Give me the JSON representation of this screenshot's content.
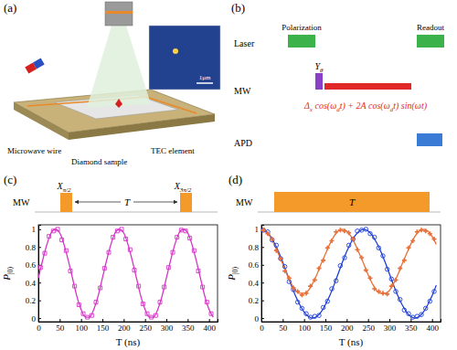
{
  "diagram": {
    "panel_a": {
      "label": "(a)",
      "microwave_wire": "Microwave wire",
      "diamond_sample": "Diamond sample",
      "tec_element": "TEC element",
      "scale_bar": "1μm"
    },
    "panel_b": {
      "label": "(b)",
      "rows": [
        "Laser",
        "MW",
        "APD"
      ],
      "polarization": "Polarization",
      "readout": "Readout",
      "pulse": {
        "text": "Y",
        "sub": "θ"
      },
      "drive": [
        {
          "text": "Δ"
        },
        {
          "sub": "x"
        },
        {
          "text": " cos(ω"
        },
        {
          "sub": "d"
        },
        {
          "text": "t) + 2A cos(ω"
        },
        {
          "sub": "d"
        },
        {
          "text": "t) sin(ωt)"
        }
      ]
    },
    "panel_c": {
      "row": "MW",
      "pulses": [
        {
          "text": "X",
          "sub": "π/2"
        },
        {
          "text": "X",
          "sub": "3π/2"
        }
      ],
      "interval": "T"
    },
    "panel_d": {
      "row": "MW",
      "duration": "T"
    }
  },
  "chart_data": [
    {
      "type": "line",
      "title": "(c)",
      "x_label": "T (ns)",
      "y_label": "P|0⟩",
      "xlim": [
        0,
        420
      ],
      "ylim": [
        -0.04,
        1.05
      ],
      "xticks": [
        0,
        50,
        100,
        150,
        200,
        250,
        300,
        350,
        400
      ],
      "yticks": [
        0,
        0.2,
        0.4,
        0.6,
        0.8,
        1
      ],
      "series": [
        {
          "type": "line",
          "color": "#d633c7",
          "x": [
            0,
            10,
            20,
            30,
            40,
            50,
            60,
            70,
            80,
            90,
            100,
            110,
            120,
            130,
            140,
            150,
            160,
            170,
            180,
            190,
            200,
            210,
            220,
            230,
            240,
            250,
            260,
            270,
            280,
            290,
            300,
            310,
            320,
            330,
            340,
            350,
            360,
            370,
            380,
            390,
            400,
            410
          ],
          "values": [
            0.45,
            0.65,
            0.83,
            0.96,
            1,
            0.96,
            0.83,
            0.65,
            0.45,
            0.25,
            0.1,
            0.01,
            0.01,
            0.1,
            0.25,
            0.45,
            0.65,
            0.83,
            0.96,
            1,
            0.96,
            0.83,
            0.65,
            0.45,
            0.25,
            0.1,
            0.01,
            0.01,
            0.1,
            0.25,
            0.45,
            0.65,
            0.83,
            0.96,
            1,
            0.96,
            0.83,
            0.65,
            0.45,
            0.25,
            0.1,
            0.01
          ]
        },
        {
          "type": "scatter",
          "marker": "square",
          "color": "#d633c7",
          "x": [
            5,
            15,
            25,
            35,
            45,
            55,
            65,
            75,
            85,
            95,
            105,
            115,
            125,
            135,
            145,
            155,
            165,
            175,
            185,
            195,
            205,
            215,
            225,
            235,
            245,
            255,
            265,
            275,
            285,
            295,
            305,
            315,
            325,
            335,
            345,
            355,
            365,
            375,
            385,
            395,
            405
          ],
          "values": [
            0.57,
            0.73,
            0.92,
            0.98,
            1,
            0.88,
            0.76,
            0.53,
            0.36,
            0.15,
            0.05,
            0.01,
            0.03,
            0.18,
            0.34,
            0.56,
            0.74,
            0.91,
            0.98,
            1,
            0.89,
            0.77,
            0.54,
            0.36,
            0.16,
            0.05,
            0.01,
            0.03,
            0.18,
            0.35,
            0.57,
            0.74,
            0.91,
            0.99,
            0.98,
            0.9,
            0.76,
            0.53,
            0.35,
            0.18,
            0.05
          ]
        }
      ]
    },
    {
      "type": "line",
      "title": "(d)",
      "x_label": "T (ns)",
      "y_label": "P|0⟩",
      "xlim": [
        0,
        420
      ],
      "ylim": [
        -0.04,
        1.05
      ],
      "xticks": [
        0,
        50,
        100,
        150,
        200,
        250,
        300,
        350,
        400
      ],
      "yticks": [
        0,
        0.2,
        0.4,
        0.6,
        0.8,
        1
      ],
      "series": [
        {
          "type": "line",
          "color": "#1f3fd6",
          "x": [
            0,
            10,
            20,
            30,
            40,
            50,
            60,
            70,
            80,
            90,
            100,
            110,
            120,
            130,
            140,
            150,
            160,
            170,
            180,
            190,
            200,
            210,
            220,
            230,
            240,
            250,
            260,
            270,
            280,
            290,
            300,
            310,
            320,
            330,
            340,
            350,
            360,
            370,
            380,
            390,
            400,
            410
          ],
          "values": [
            1,
            0.98,
            0.93,
            0.85,
            0.75,
            0.63,
            0.5,
            0.37,
            0.25,
            0.15,
            0.07,
            0.02,
            0,
            0.02,
            0.07,
            0.15,
            0.25,
            0.37,
            0.5,
            0.63,
            0.75,
            0.85,
            0.93,
            0.98,
            1,
            0.98,
            0.93,
            0.85,
            0.75,
            0.63,
            0.5,
            0.37,
            0.25,
            0.15,
            0.07,
            0.02,
            0,
            0.02,
            0.07,
            0.15,
            0.25,
            0.37
          ]
        },
        {
          "type": "line",
          "color": "#e8703a",
          "x": [
            0,
            10,
            20,
            30,
            40,
            50,
            60,
            70,
            80,
            90,
            100,
            110,
            120,
            130,
            140,
            150,
            160,
            170,
            180,
            190,
            200,
            210,
            220,
            230,
            240,
            250,
            260,
            270,
            280,
            290,
            300,
            310,
            320,
            330,
            340,
            350,
            360,
            370,
            380,
            390,
            400,
            410
          ],
          "values": [
            1,
            0.98,
            0.92,
            0.83,
            0.72,
            0.61,
            0.49,
            0.39,
            0.31,
            0.28,
            0.28,
            0.31,
            0.39,
            0.49,
            0.61,
            0.72,
            0.83,
            0.92,
            0.98,
            1,
            0.98,
            0.92,
            0.83,
            0.72,
            0.61,
            0.49,
            0.39,
            0.31,
            0.28,
            0.28,
            0.31,
            0.39,
            0.49,
            0.61,
            0.72,
            0.83,
            0.92,
            0.98,
            1,
            0.98,
            0.92,
            0.83
          ]
        },
        {
          "type": "scatter",
          "marker": "circle",
          "color": "#1f3fd6",
          "x": [
            5,
            15,
            25,
            35,
            45,
            55,
            65,
            75,
            85,
            95,
            105,
            115,
            125,
            135,
            145,
            155,
            165,
            175,
            185,
            195,
            205,
            215,
            225,
            235,
            245,
            255,
            265,
            275,
            285,
            295,
            305,
            315,
            325,
            335,
            345,
            355,
            365,
            375,
            385,
            395,
            405
          ],
          "values": [
            0.99,
            0.97,
            0.88,
            0.82,
            0.67,
            0.58,
            0.41,
            0.32,
            0.18,
            0.11,
            0.05,
            0.01,
            0.02,
            0.03,
            0.12,
            0.19,
            0.33,
            0.42,
            0.59,
            0.68,
            0.82,
            0.89,
            0.98,
            0.99,
            1,
            0.95,
            0.91,
            0.79,
            0.7,
            0.55,
            0.44,
            0.3,
            0.21,
            0.09,
            0.05,
            0.01,
            0.02,
            0.04,
            0.11,
            0.19,
            0.3
          ]
        },
        {
          "type": "scatter",
          "marker": "cross",
          "color": "#e8703a",
          "x": [
            5,
            15,
            25,
            35,
            45,
            55,
            65,
            75,
            85,
            95,
            105,
            115,
            125,
            135,
            145,
            155,
            165,
            175,
            185,
            195,
            205,
            215,
            225,
            235,
            245,
            255,
            265,
            275,
            285,
            295,
            305,
            315,
            325,
            335,
            345,
            355,
            365,
            375,
            385,
            395,
            405
          ],
          "values": [
            0.99,
            0.95,
            0.89,
            0.76,
            0.67,
            0.53,
            0.45,
            0.34,
            0.3,
            0.26,
            0.28,
            0.36,
            0.43,
            0.56,
            0.65,
            0.79,
            0.87,
            0.97,
            0.99,
            0.98,
            0.96,
            0.89,
            0.77,
            0.68,
            0.54,
            0.45,
            0.33,
            0.3,
            0.28,
            0.27,
            0.36,
            0.43,
            0.56,
            0.65,
            0.79,
            0.87,
            0.97,
            0.99,
            0.98,
            0.95,
            0.89
          ]
        }
      ]
    }
  ]
}
